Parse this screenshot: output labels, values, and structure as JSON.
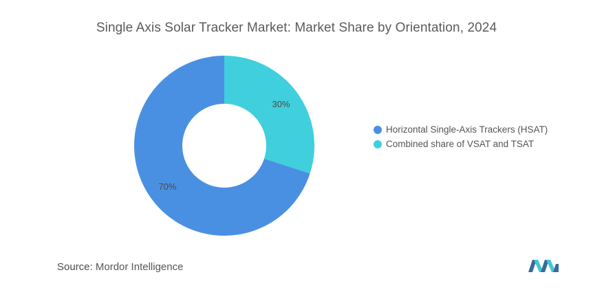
{
  "title": "Single Axis Solar Tracker Market: Market Share by Orientation, 2024",
  "source": {
    "label": "Source:",
    "value": "Mordor Intelligence"
  },
  "colors": {
    "hsat": "#4a90e2",
    "combined": "#40cfdc",
    "logo_dark": "#3a6b9a",
    "logo_light": "#3fc7d6"
  },
  "chart_data": {
    "type": "pie",
    "variant": "donut",
    "title": "Single Axis Solar Tracker Market: Market Share by Orientation, 2024",
    "legend_position": "right",
    "slices": [
      {
        "name": "Combined share of VSAT and TSAT",
        "value": 30,
        "label": "30%",
        "color": "#40cfdc"
      },
      {
        "name": "Horizontal Single-Axis Trackers (HSAT)",
        "value": 70,
        "label": "70%",
        "color": "#4a90e2"
      }
    ],
    "legend": [
      {
        "name": "Horizontal Single-Axis Trackers (HSAT)",
        "color": "#4a90e2"
      },
      {
        "name": "Combined share of VSAT and TSAT",
        "color": "#40cfdc"
      }
    ]
  }
}
